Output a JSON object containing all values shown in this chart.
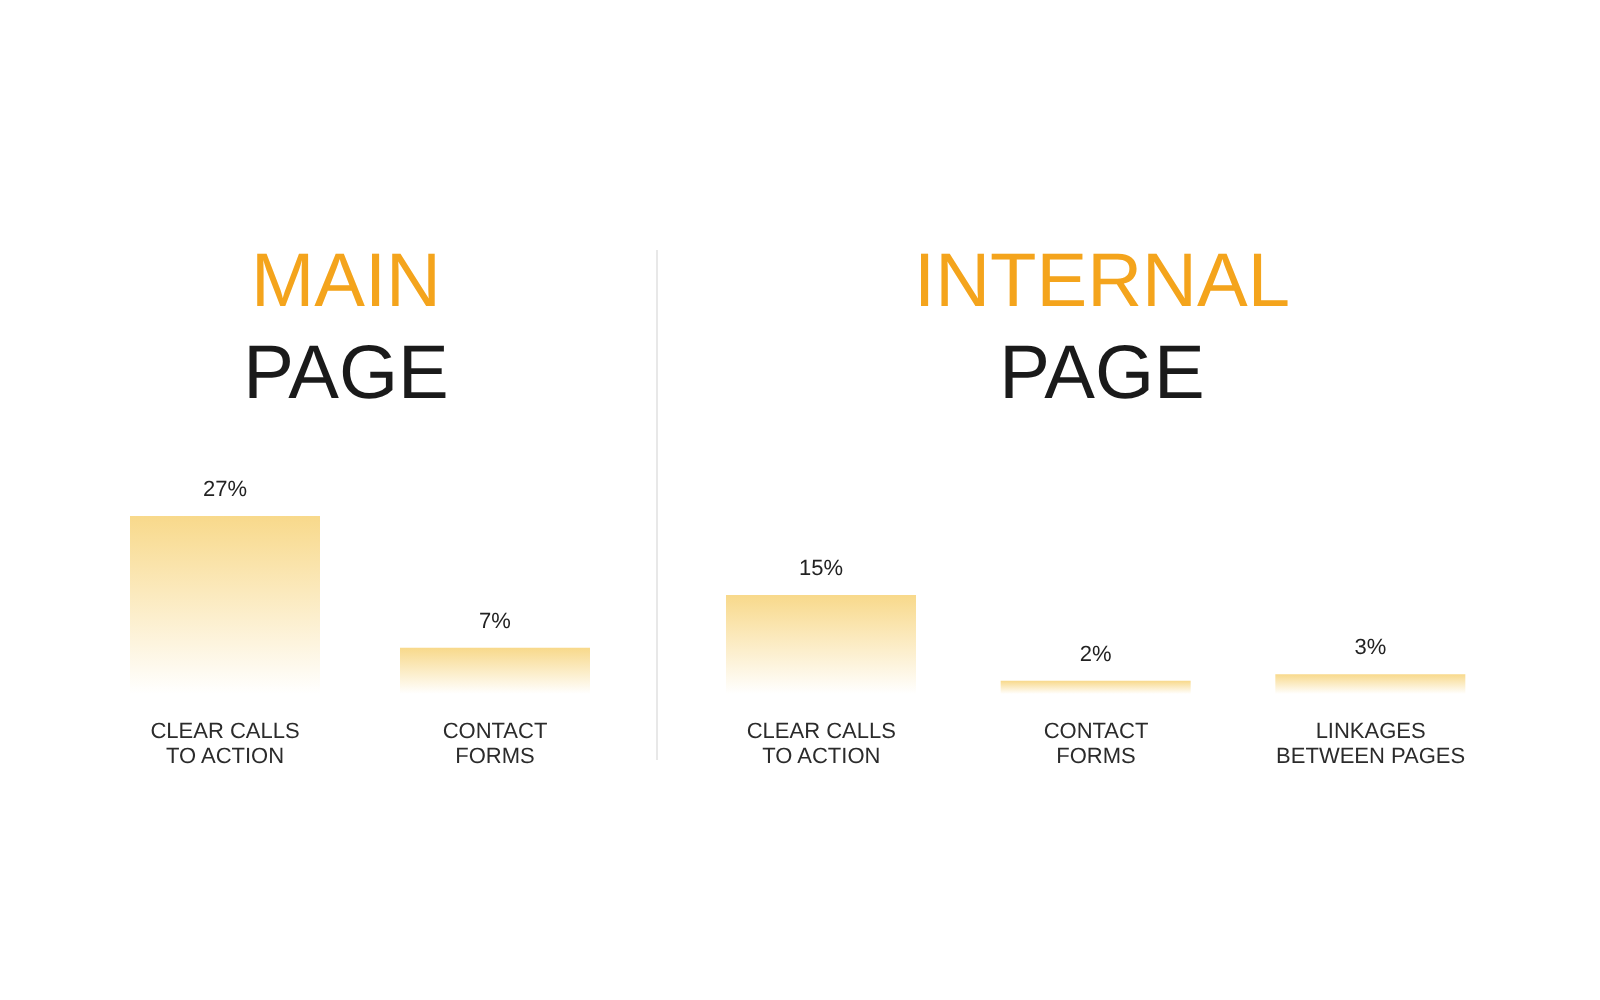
{
  "chart_data": [
    {
      "type": "bar",
      "title": "MAIN",
      "subtitle": "PAGE",
      "categories": [
        "CLEAR CALLS TO ACTION",
        "CONTACT FORMS"
      ],
      "values": [
        27,
        7
      ],
      "value_labels": [
        "27%",
        "7%"
      ],
      "color": "#f8d98b",
      "tick_labels": "x"
    },
    {
      "type": "bar",
      "title": "INTERNAL",
      "subtitle": "PAGE",
      "categories": [
        "CLEAR CALLS TO ACTION",
        "CONTACT FORMS",
        "LINKAGES BETWEEN PAGES"
      ],
      "values": [
        15,
        2,
        3
      ],
      "value_labels": [
        "15%",
        "2%",
        "3%"
      ],
      "color": "#f8d98b",
      "tick_labels": "x"
    }
  ]
}
